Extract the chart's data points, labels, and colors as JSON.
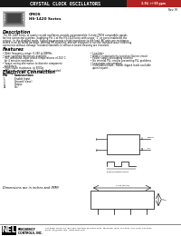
{
  "title_text": "CRYSTAL CLOCK OSCILLATORS",
  "title_bg": "#1a1a1a",
  "title_color": "#ffffff",
  "title_tag_bg": "#b22222",
  "title_tag_text": "3.3V, +/-50 ppm",
  "rev_text": "Rev. M",
  "model_line1": "CMOS",
  "model_line2": "HS-1420 Series",
  "desc_title": "Description",
  "feat_title": "Features",
  "elec_title": "Electrical Connection",
  "pin_col1": "Pin",
  "pin_col2": "Connection",
  "pins": [
    [
      "1",
      "Enable Input"
    ],
    [
      "2",
      "Ground (case)"
    ],
    [
      "4",
      "Output"
    ],
    [
      "14",
      "Vcc"
    ]
  ],
  "dim_text": "Dimensions are in inches and (MM)",
  "footer_nel": "NEL",
  "footer_freq": "FREQUENCY\nCONTROLS, INC.",
  "footer_addr": "137 Bauer Drive, P.O. Box 487, Oakland, NJ 07436-0487  Tel Phone: (201) 741-0404  FAX: (201) 741-2244\nEmail: nel@nelfc.com   www.nelfc.com",
  "page_bg": "#ffffff"
}
